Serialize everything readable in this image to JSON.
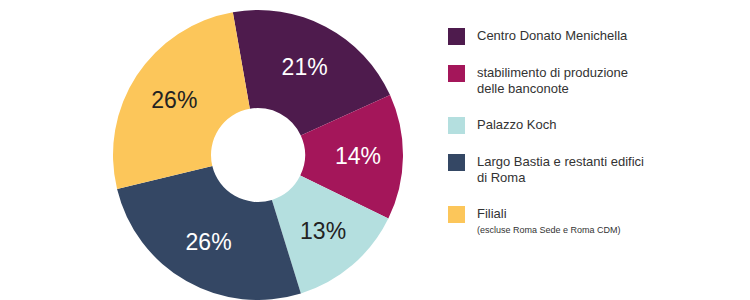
{
  "chart_data": {
    "type": "pie",
    "categories": [
      "Centro Donato Menichella",
      "stabilimento di produzione delle banconote",
      "Palazzo Koch",
      "Largo Bastia e restanti edifici di Roma",
      "Filiali (escluse Roma Sede e Roma CDM)"
    ],
    "values": [
      21,
      14,
      13,
      26,
      26
    ],
    "value_labels": [
      "21%",
      "14%",
      "13%",
      "26%",
      "26%"
    ],
    "data_labels": true,
    "colors": [
      "#4e1b4d",
      "#a4165a",
      "#b4dfdf",
      "#344764",
      "#fcc65a"
    ],
    "legend": "right"
  }
}
